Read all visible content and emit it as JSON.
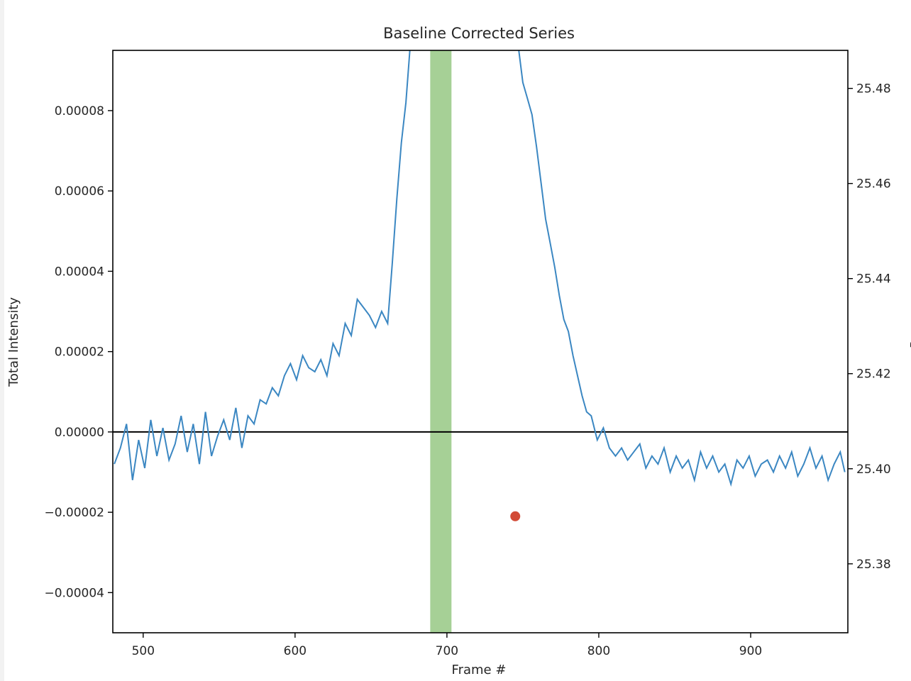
{
  "chart_data": {
    "type": "line",
    "title": "Baseline Corrected Series",
    "xlabel": "Frame #",
    "ylabel": "Total Intensity",
    "y2label_partial": "Pr",
    "xlim": [
      480,
      964
    ],
    "ylim": [
      -5e-05,
      9.5e-05
    ],
    "y2lim": [
      25.3655,
      25.488
    ],
    "x_ticks": [
      500,
      600,
      700,
      800,
      900
    ],
    "y_ticks": [
      {
        "value": 8e-05,
        "label": "0.00008"
      },
      {
        "value": 6e-05,
        "label": "0.00006"
      },
      {
        "value": 4e-05,
        "label": "0.00004"
      },
      {
        "value": 2e-05,
        "label": "0.00002"
      },
      {
        "value": 0.0,
        "label": "0.00000"
      },
      {
        "value": -2e-05,
        "label": "−0.00002"
      },
      {
        "value": -4e-05,
        "label": "−0.00004"
      }
    ],
    "y2_ticks": [
      {
        "value": 25.48,
        "label": "25.48"
      },
      {
        "value": 25.46,
        "label": "25.46"
      },
      {
        "value": 25.44,
        "label": "25.44"
      },
      {
        "value": 25.42,
        "label": "25.42"
      },
      {
        "value": 25.4,
        "label": "25.40"
      },
      {
        "value": 25.38,
        "label": "25.38"
      }
    ],
    "zero_line": 0.0,
    "highlight_span": {
      "x_start": 689,
      "x_end": 703,
      "color": "#a6d096"
    },
    "marker_point": {
      "x": 745,
      "y2": 25.39,
      "color": "#d24a36"
    },
    "series": [
      {
        "color": "#3b87c2",
        "x": [
          481,
          485,
          489,
          493,
          497,
          501,
          505,
          509,
          513,
          517,
          521,
          525,
          529,
          533,
          537,
          541,
          545,
          549,
          553,
          557,
          561,
          565,
          569,
          573,
          577,
          581,
          585,
          589,
          593,
          597,
          601,
          605,
          609,
          613,
          617,
          621,
          625,
          629,
          633,
          637,
          641,
          645,
          649,
          653,
          657,
          661,
          664,
          667,
          670,
          673,
          676,
          678,
          747,
          750,
          753,
          756,
          759,
          762,
          765,
          768,
          771,
          774,
          777,
          780,
          783,
          786,
          789,
          792,
          795,
          799,
          803,
          807,
          811,
          815,
          819,
          823,
          827,
          831,
          835,
          839,
          843,
          847,
          851,
          855,
          859,
          863,
          867,
          871,
          875,
          879,
          883,
          887,
          891,
          895,
          899,
          903,
          907,
          911,
          915,
          919,
          923,
          927,
          931,
          935,
          939,
          943,
          947,
          951,
          955,
          959,
          962
        ],
        "y": [
          -8e-06,
          -4e-06,
          2e-06,
          -1.2e-05,
          -2e-06,
          -9e-06,
          3e-06,
          -6e-06,
          1e-06,
          -7e-06,
          -3e-06,
          4e-06,
          -5e-06,
          2e-06,
          -8e-06,
          5e-06,
          -6e-06,
          -1e-06,
          3e-06,
          -2e-06,
          6e-06,
          -4e-06,
          4e-06,
          2e-06,
          8e-06,
          7e-06,
          1.1e-05,
          9e-06,
          1.4e-05,
          1.7e-05,
          1.3e-05,
          1.9e-05,
          1.6e-05,
          1.5e-05,
          1.8e-05,
          1.4e-05,
          2.2e-05,
          1.9e-05,
          2.7e-05,
          2.4e-05,
          3.3e-05,
          3.1e-05,
          2.9e-05,
          2.6e-05,
          3e-05,
          2.7e-05,
          4.2e-05,
          5.8e-05,
          7.2e-05,
          8.2e-05,
          9.7e-05,
          0.00011,
          9.6e-05,
          8.7e-05,
          8.3e-05,
          7.9e-05,
          7.1e-05,
          6.2e-05,
          5.3e-05,
          4.7e-05,
          4.1e-05,
          3.4e-05,
          2.8e-05,
          2.5e-05,
          1.9e-05,
          1.4e-05,
          9e-06,
          5e-06,
          4e-06,
          -2e-06,
          1e-06,
          -4e-06,
          -6e-06,
          -4e-06,
          -7e-06,
          -5e-06,
          -3e-06,
          -9e-06,
          -6e-06,
          -8e-06,
          -4e-06,
          -1e-05,
          -6e-06,
          -9e-06,
          -7e-06,
          -1.2e-05,
          -5e-06,
          -9e-06,
          -6e-06,
          -1e-05,
          -8e-06,
          -1.3e-05,
          -7e-06,
          -9e-06,
          -6e-06,
          -1.1e-05,
          -8e-06,
          -7e-06,
          -1e-05,
          -6e-06,
          -9e-06,
          -5e-06,
          -1.1e-05,
          -8e-06,
          -4e-06,
          -9e-06,
          -6e-06,
          -1.2e-05,
          -8e-06,
          -5e-06,
          -1e-05
        ]
      }
    ]
  }
}
